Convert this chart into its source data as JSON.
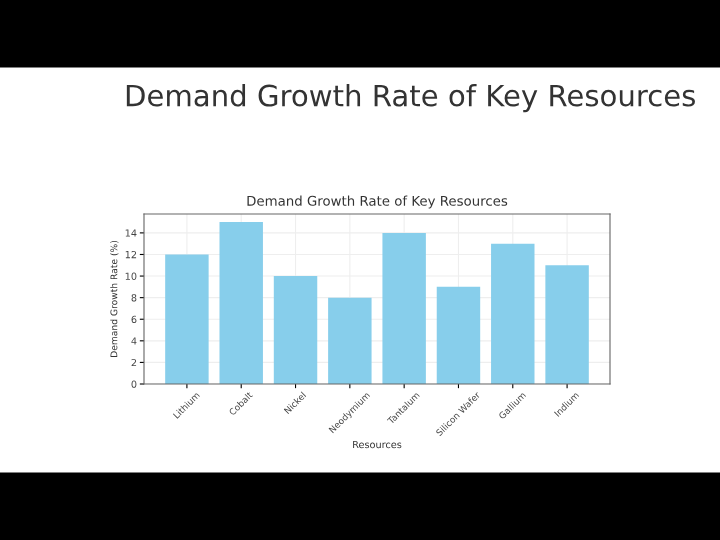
{
  "chart_data": {
    "type": "bar",
    "title": "Demand Growth Rate of Key Resources",
    "subtitle": "Demand Growth Rate of Key Resources",
    "xlabel": "Resources",
    "ylabel": "Demand Growth Rate (%)",
    "categories": [
      "Lithium",
      "Cobalt",
      "Nickel",
      "Neodymium",
      "Tantalum",
      "Silicon Wafer",
      "Gallium",
      "Indium"
    ],
    "values": [
      12,
      15,
      10,
      8,
      14,
      9,
      13,
      11
    ],
    "color": "#87ceeb",
    "ylim": [
      0,
      15.75
    ],
    "yticks": [
      0,
      2,
      4,
      6,
      8,
      10,
      12,
      14
    ],
    "grid": true
  }
}
